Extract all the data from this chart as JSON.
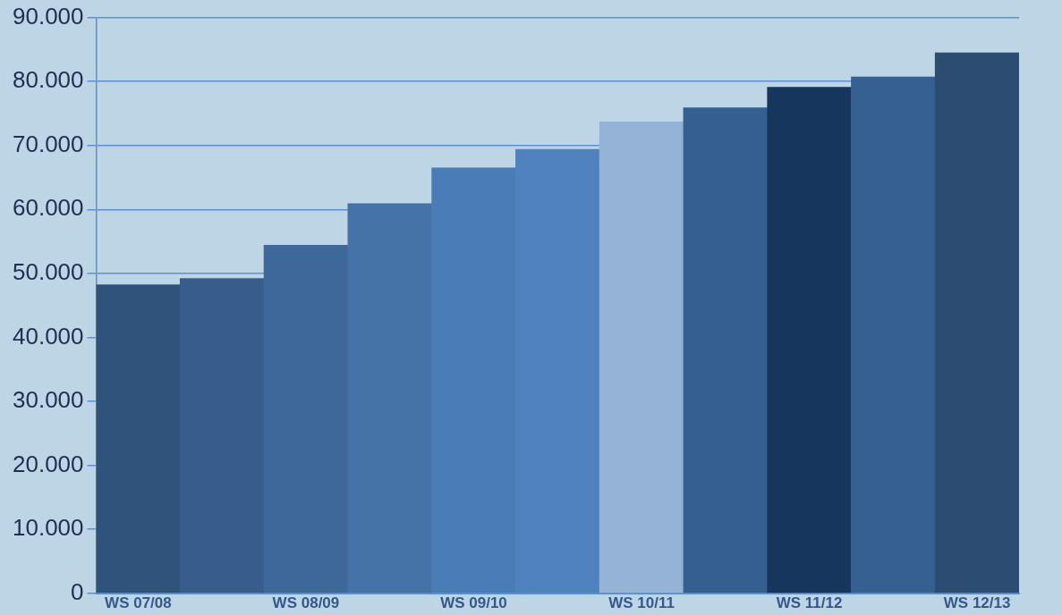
{
  "chart_data": {
    "type": "bar",
    "categories": [
      "WS 07/08",
      null,
      "WS 08/09",
      null,
      "WS 09/10",
      null,
      "WS 10/11",
      null,
      "WS 11/12",
      null,
      "WS 12/13"
    ],
    "values": [
      48200,
      49200,
      54400,
      60900,
      66500,
      69400,
      73700,
      75900,
      79100,
      80700,
      84500
    ],
    "colors": [
      "#30537b",
      "#385d8c",
      "#3e6899",
      "#4573a8",
      "#4a7db8",
      "#4f82be",
      "#95b3d7",
      "#355f91",
      "#17365d",
      "#366092",
      "#2c4c72"
    ],
    "ylim": [
      0,
      90000
    ],
    "yticks": [
      {
        "value": 0,
        "label": "0"
      },
      {
        "value": 10000,
        "label": "10.000"
      },
      {
        "value": 20000,
        "label": "20.000"
      },
      {
        "value": 30000,
        "label": "30.000"
      },
      {
        "value": 40000,
        "label": "40.000"
      },
      {
        "value": 50000,
        "label": "50.000"
      },
      {
        "value": 60000,
        "label": "60.000"
      },
      {
        "value": 70000,
        "label": "70.000"
      },
      {
        "value": 80000,
        "label": "80.000"
      },
      {
        "value": 90000,
        "label": "90.000"
      }
    ],
    "grid": "y",
    "legend": false
  }
}
